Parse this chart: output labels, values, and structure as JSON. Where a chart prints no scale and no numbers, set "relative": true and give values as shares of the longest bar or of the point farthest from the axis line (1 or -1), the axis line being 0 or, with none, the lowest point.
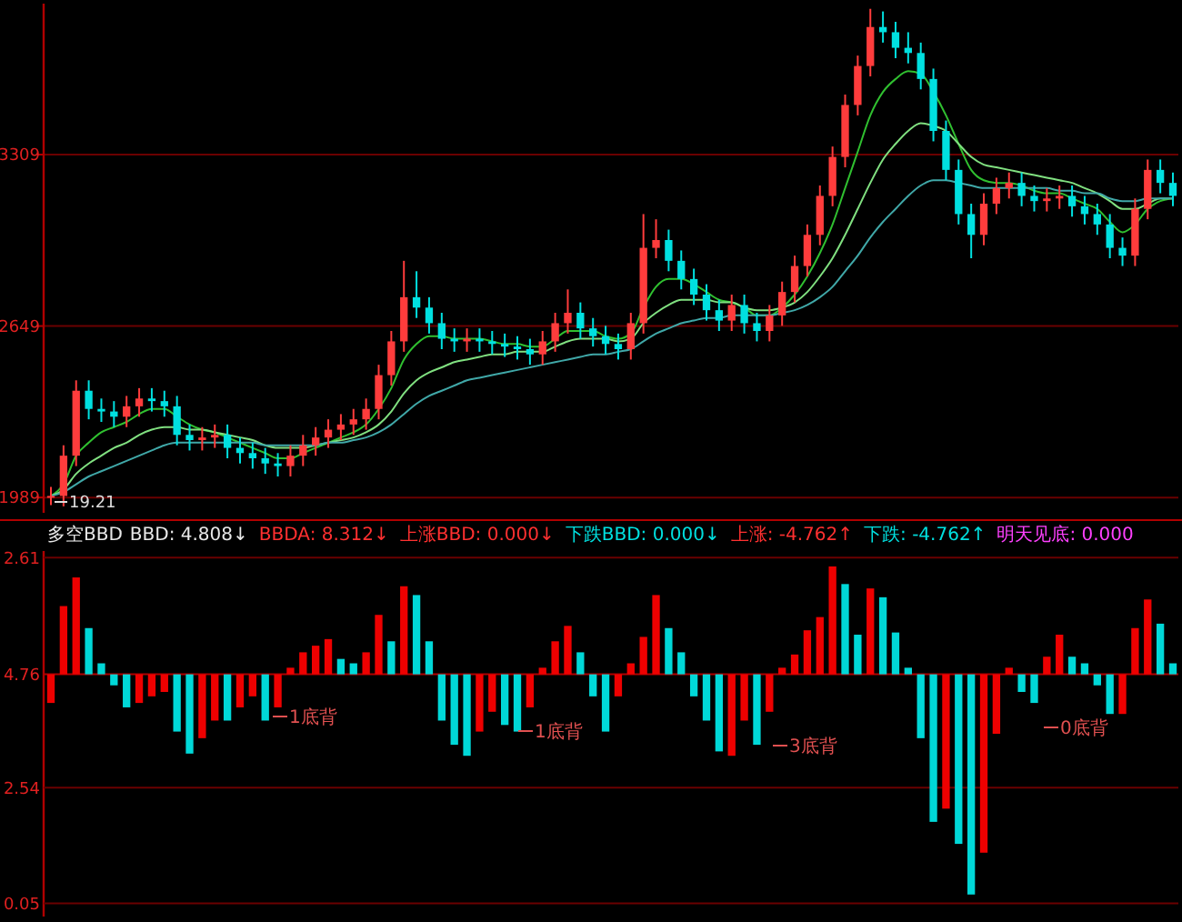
{
  "chart_data": [
    {
      "type": "candlestick",
      "categories": [
        null,
        null,
        null,
        null,
        null,
        null,
        null,
        null,
        null,
        null,
        null,
        null,
        null,
        null,
        null,
        null,
        null,
        null,
        null,
        null,
        null,
        null,
        null,
        null,
        null,
        null,
        null,
        null,
        null,
        null,
        null,
        null,
        null,
        null,
        null,
        null,
        null,
        null,
        null,
        null,
        null,
        null,
        null,
        null,
        null,
        null,
        null,
        null,
        null,
        null,
        null,
        null,
        null,
        null,
        null,
        null,
        null,
        null,
        null,
        null,
        null,
        null,
        null,
        null,
        null,
        null,
        null,
        null,
        null,
        null,
        null,
        null,
        null,
        null,
        null,
        null,
        null,
        null,
        null,
        null,
        null,
        null,
        null,
        null,
        null,
        null,
        null,
        null,
        null,
        null
      ],
      "ohlc": [
        [
          1990,
          2030,
          1960,
          1995
        ],
        [
          1995,
          2190,
          1955,
          2150
        ],
        [
          2150,
          2440,
          2110,
          2400
        ],
        [
          2400,
          2440,
          2290,
          2330
        ],
        [
          2330,
          2370,
          2280,
          2320
        ],
        [
          2320,
          2360,
          2260,
          2300
        ],
        [
          2300,
          2380,
          2260,
          2340
        ],
        [
          2340,
          2410,
          2300,
          2370
        ],
        [
          2370,
          2410,
          2320,
          2360
        ],
        [
          2360,
          2400,
          2300,
          2340
        ],
        [
          2340,
          2380,
          2190,
          2230
        ],
        [
          2230,
          2270,
          2170,
          2210
        ],
        [
          2210,
          2260,
          2170,
          2220
        ],
        [
          2220,
          2270,
          2180,
          2230
        ],
        [
          2230,
          2270,
          2140,
          2180
        ],
        [
          2180,
          2220,
          2120,
          2160
        ],
        [
          2160,
          2200,
          2100,
          2140
        ],
        [
          2140,
          2180,
          2080,
          2120
        ],
        [
          2120,
          2160,
          2070,
          2110
        ],
        [
          2110,
          2190,
          2070,
          2150
        ],
        [
          2150,
          2230,
          2110,
          2190
        ],
        [
          2190,
          2260,
          2150,
          2220
        ],
        [
          2220,
          2290,
          2180,
          2250
        ],
        [
          2250,
          2310,
          2210,
          2270
        ],
        [
          2270,
          2330,
          2230,
          2290
        ],
        [
          2290,
          2370,
          2250,
          2330
        ],
        [
          2330,
          2500,
          2290,
          2460
        ],
        [
          2460,
          2630,
          2420,
          2590
        ],
        [
          2590,
          2900,
          2550,
          2760
        ],
        [
          2760,
          2860,
          2680,
          2720
        ],
        [
          2720,
          2760,
          2620,
          2660
        ],
        [
          2660,
          2700,
          2560,
          2600
        ],
        [
          2600,
          2640,
          2550,
          2590
        ],
        [
          2590,
          2640,
          2550,
          2600
        ],
        [
          2600,
          2640,
          2550,
          2590
        ],
        [
          2590,
          2630,
          2540,
          2580
        ],
        [
          2580,
          2620,
          2530,
          2570
        ],
        [
          2570,
          2610,
          2520,
          2560
        ],
        [
          2560,
          2600,
          2500,
          2540
        ],
        [
          2540,
          2630,
          2500,
          2590
        ],
        [
          2590,
          2700,
          2550,
          2660
        ],
        [
          2660,
          2790,
          2620,
          2700
        ],
        [
          2700,
          2740,
          2600,
          2640
        ],
        [
          2640,
          2680,
          2570,
          2610
        ],
        [
          2610,
          2650,
          2540,
          2580
        ],
        [
          2580,
          2620,
          2520,
          2560
        ],
        [
          2560,
          2700,
          2520,
          2660
        ],
        [
          2660,
          3080,
          2620,
          2950
        ],
        [
          2950,
          3060,
          2910,
          2980
        ],
        [
          2980,
          3020,
          2860,
          2900
        ],
        [
          2900,
          2940,
          2790,
          2830
        ],
        [
          2830,
          2870,
          2730,
          2770
        ],
        [
          2770,
          2810,
          2670,
          2710
        ],
        [
          2710,
          2750,
          2630,
          2670
        ],
        [
          2670,
          2770,
          2630,
          2730
        ],
        [
          2730,
          2770,
          2620,
          2660
        ],
        [
          2660,
          2700,
          2590,
          2630
        ],
        [
          2630,
          2730,
          2590,
          2690
        ],
        [
          2690,
          2820,
          2650,
          2780
        ],
        [
          2780,
          2920,
          2740,
          2880
        ],
        [
          2880,
          3040,
          2840,
          3000
        ],
        [
          3000,
          3190,
          2960,
          3150
        ],
        [
          3150,
          3340,
          3110,
          3300
        ],
        [
          3300,
          3540,
          3260,
          3500
        ],
        [
          3500,
          3690,
          3460,
          3650
        ],
        [
          3650,
          3870,
          3610,
          3800
        ],
        [
          3800,
          3860,
          3740,
          3780
        ],
        [
          3780,
          3820,
          3680,
          3720
        ],
        [
          3720,
          3780,
          3660,
          3700
        ],
        [
          3700,
          3740,
          3560,
          3600
        ],
        [
          3600,
          3640,
          3360,
          3400
        ],
        [
          3400,
          3440,
          3210,
          3250
        ],
        [
          3250,
          3290,
          3040,
          3080
        ],
        [
          3080,
          3120,
          2910,
          3000
        ],
        [
          3000,
          3160,
          2960,
          3120
        ],
        [
          3120,
          3220,
          3080,
          3180
        ],
        [
          3180,
          3240,
          3140,
          3200
        ],
        [
          3200,
          3240,
          3110,
          3150
        ],
        [
          3150,
          3190,
          3090,
          3130
        ],
        [
          3130,
          3180,
          3090,
          3140
        ],
        [
          3140,
          3190,
          3100,
          3150
        ],
        [
          3150,
          3190,
          3070,
          3110
        ],
        [
          3110,
          3150,
          3040,
          3080
        ],
        [
          3080,
          3120,
          3000,
          3040
        ],
        [
          3040,
          3080,
          2910,
          2950
        ],
        [
          2950,
          2990,
          2880,
          2920
        ],
        [
          2920,
          3140,
          2880,
          3100
        ],
        [
          3100,
          3290,
          3060,
          3250
        ],
        [
          3250,
          3290,
          3160,
          3200
        ],
        [
          3200,
          3240,
          3110,
          3150
        ]
      ],
      "colors": [
        "#ff3c3c",
        "#ff3c3c",
        "#ff3c3c",
        "#00e0e0",
        "#00e0e0",
        "#00e0e0",
        "#ff3c3c",
        "#ff3c3c",
        "#00e0e0",
        "#00e0e0",
        "#00e0e0",
        "#00e0e0",
        "#ff3c3c",
        "#ff3c3c",
        "#00e0e0",
        "#00e0e0",
        "#00e0e0",
        "#00e0e0",
        "#00e0e0",
        "#ff3c3c",
        "#ff3c3c",
        "#ff3c3c",
        "#ff3c3c",
        "#ff3c3c",
        "#ff3c3c",
        "#ff3c3c",
        "#ff3c3c",
        "#ff3c3c",
        "#ff3c3c",
        "#00e0e0",
        "#00e0e0",
        "#00e0e0",
        "#00e0e0",
        "#ff3c3c",
        "#00e0e0",
        "#00e0e0",
        "#00e0e0",
        "#00e0e0",
        "#00e0e0",
        "#ff3c3c",
        "#ff3c3c",
        "#ff3c3c",
        "#00e0e0",
        "#00e0e0",
        "#00e0e0",
        "#00e0e0",
        "#ff3c3c",
        "#ff3c3c",
        "#ff3c3c",
        "#00e0e0",
        "#00e0e0",
        "#00e0e0",
        "#00e0e0",
        "#00e0e0",
        "#ff3c3c",
        "#00e0e0",
        "#00e0e0",
        "#ff3c3c",
        "#ff3c3c",
        "#ff3c3c",
        "#ff3c3c",
        "#ff3c3c",
        "#ff3c3c",
        "#ff3c3c",
        "#ff3c3c",
        "#ff3c3c",
        "#00e0e0",
        "#00e0e0",
        "#00e0e0",
        "#00e0e0",
        "#00e0e0",
        "#00e0e0",
        "#00e0e0",
        "#00e0e0",
        "#ff3c3c",
        "#ff3c3c",
        "#ff3c3c",
        "#00e0e0",
        "#00e0e0",
        "#ff3c3c",
        "#ff3c3c",
        "#00e0e0",
        "#00e0e0",
        "#00e0e0",
        "#00e0e0",
        "#00e0e0",
        "#ff3c3c",
        "#ff3c3c",
        "#00e0e0",
        "#00e0e0"
      ],
      "series": [
        {
          "type": "line",
          "color": "#30c030",
          "values": [
            1995,
            2040,
            2150,
            2200,
            2240,
            2260,
            2280,
            2310,
            2330,
            2330,
            2300,
            2270,
            2250,
            2240,
            2220,
            2200,
            2180,
            2160,
            2140,
            2140,
            2160,
            2180,
            2200,
            2220,
            2240,
            2270,
            2330,
            2410,
            2520,
            2580,
            2610,
            2610,
            2600,
            2600,
            2600,
            2590,
            2580,
            2580,
            2570,
            2570,
            2600,
            2630,
            2630,
            2630,
            2610,
            2600,
            2620,
            2720,
            2800,
            2830,
            2830,
            2810,
            2780,
            2750,
            2740,
            2720,
            2690,
            2690,
            2720,
            2770,
            2840,
            2930,
            3040,
            3180,
            3320,
            3460,
            3550,
            3600,
            3630,
            3620,
            3550,
            3460,
            3350,
            3250,
            3210,
            3200,
            3200,
            3190,
            3170,
            3160,
            3160,
            3140,
            3120,
            3100,
            3050,
            3010,
            3040,
            3100,
            3130,
            3140
          ]
        },
        {
          "type": "line",
          "color": "#80e080",
          "values": [
            1995,
            2020,
            2080,
            2120,
            2150,
            2180,
            2200,
            2230,
            2250,
            2260,
            2260,
            2250,
            2250,
            2240,
            2230,
            2220,
            2210,
            2190,
            2180,
            2180,
            2180,
            2190,
            2200,
            2210,
            2220,
            2240,
            2270,
            2320,
            2390,
            2440,
            2470,
            2490,
            2510,
            2520,
            2530,
            2540,
            2540,
            2550,
            2550,
            2550,
            2570,
            2590,
            2600,
            2600,
            2600,
            2590,
            2600,
            2660,
            2700,
            2730,
            2750,
            2750,
            2750,
            2740,
            2740,
            2720,
            2710,
            2710,
            2720,
            2740,
            2780,
            2840,
            2910,
            3000,
            3100,
            3200,
            3290,
            3350,
            3400,
            3430,
            3420,
            3400,
            3350,
            3300,
            3270,
            3260,
            3250,
            3240,
            3230,
            3220,
            3210,
            3200,
            3180,
            3160,
            3130,
            3100,
            3100,
            3120,
            3140,
            3140
          ]
        },
        {
          "type": "line",
          "color": "#40a8a8",
          "values": [
            1995,
            2010,
            2040,
            2070,
            2090,
            2110,
            2130,
            2150,
            2170,
            2190,
            2200,
            2200,
            2200,
            2200,
            2200,
            2200,
            2200,
            2190,
            2190,
            2190,
            2190,
            2190,
            2200,
            2200,
            2210,
            2220,
            2240,
            2270,
            2310,
            2350,
            2380,
            2400,
            2420,
            2440,
            2450,
            2460,
            2470,
            2480,
            2490,
            2500,
            2510,
            2520,
            2530,
            2540,
            2540,
            2550,
            2560,
            2590,
            2620,
            2640,
            2660,
            2670,
            2680,
            2680,
            2690,
            2690,
            2690,
            2690,
            2700,
            2710,
            2730,
            2760,
            2800,
            2860,
            2920,
            2990,
            3050,
            3100,
            3150,
            3190,
            3210,
            3210,
            3200,
            3190,
            3180,
            3180,
            3180,
            3180,
            3180,
            3180,
            3170,
            3170,
            3160,
            3160,
            3140,
            3130,
            3130,
            3140,
            3140,
            3140
          ]
        }
      ],
      "ylim": [
        1930,
        3890
      ],
      "yticks": [
        1989,
        2649,
        3309
      ],
      "grid": "y",
      "tick_labels": "y",
      "annotations": [
        "19.21"
      ]
    },
    {
      "type": "bar",
      "title": "多空BBD",
      "categories": [
        null,
        null,
        null,
        null,
        null,
        null,
        null,
        null,
        null,
        null,
        null,
        null,
        null,
        null,
        null,
        null,
        null,
        null,
        null,
        null,
        null,
        null,
        null,
        null,
        null,
        null,
        null,
        null,
        null,
        null,
        null,
        null,
        null,
        null,
        null,
        null,
        null,
        null,
        null,
        null,
        null,
        null,
        null,
        null,
        null,
        null,
        null,
        null,
        null,
        null,
        null,
        null,
        null,
        null,
        null,
        null,
        null,
        null,
        null,
        null,
        null,
        null,
        null,
        null,
        null,
        null,
        null,
        null,
        null,
        null,
        null,
        null,
        null,
        null,
        null,
        null,
        null,
        null,
        null,
        null,
        null,
        null,
        null,
        null,
        null,
        null,
        null,
        null,
        null,
        null
      ],
      "relative": true,
      "values": [
        -0.13,
        0.31,
        0.44,
        0.21,
        0.05,
        -0.05,
        -0.15,
        -0.13,
        -0.1,
        -0.08,
        -0.26,
        -0.36,
        -0.29,
        -0.21,
        -0.21,
        -0.15,
        -0.1,
        -0.21,
        -0.15,
        0.03,
        0.1,
        0.13,
        0.16,
        0.07,
        0.05,
        0.1,
        0.27,
        0.15,
        0.4,
        0.36,
        0.15,
        -0.21,
        -0.32,
        -0.37,
        -0.26,
        -0.17,
        -0.23,
        -0.26,
        -0.15,
        0.03,
        0.15,
        0.22,
        0.1,
        -0.1,
        -0.26,
        -0.1,
        0.05,
        0.17,
        0.36,
        0.21,
        0.1,
        -0.1,
        -0.21,
        -0.35,
        -0.37,
        -0.21,
        -0.32,
        -0.17,
        0.03,
        0.09,
        0.2,
        0.26,
        0.49,
        0.41,
        0.18,
        0.39,
        0.35,
        0.19,
        0.03,
        -0.29,
        -0.67,
        -0.61,
        -0.77,
        -1,
        -0.81,
        -0.27,
        0.03,
        -0.08,
        -0.13,
        0.08,
        0.18,
        0.08,
        0.05,
        -0.05,
        -0.18,
        -0.18,
        0.21,
        0.34,
        0.23,
        0.05
      ],
      "colors": [
        "#ee0000",
        "#ee0000",
        "#ee0000",
        "#00d8d8",
        "#00d8d8",
        "#00d8d8",
        "#00d8d8",
        "#ee0000",
        "#ee0000",
        "#ee0000",
        "#00d8d8",
        "#00d8d8",
        "#ee0000",
        "#ee0000",
        "#00d8d8",
        "#ee0000",
        "#ee0000",
        "#00d8d8",
        "#ee0000",
        "#ee0000",
        "#ee0000",
        "#ee0000",
        "#ee0000",
        "#00d8d8",
        "#00d8d8",
        "#ee0000",
        "#ee0000",
        "#00d8d8",
        "#ee0000",
        "#00d8d8",
        "#00d8d8",
        "#00d8d8",
        "#00d8d8",
        "#00d8d8",
        "#ee0000",
        "#ee0000",
        "#00d8d8",
        "#00d8d8",
        "#ee0000",
        "#ee0000",
        "#ee0000",
        "#ee0000",
        "#00d8d8",
        "#00d8d8",
        "#00d8d8",
        "#ee0000",
        "#ee0000",
        "#ee0000",
        "#ee0000",
        "#00d8d8",
        "#00d8d8",
        "#00d8d8",
        "#00d8d8",
        "#00d8d8",
        "#ee0000",
        "#ee0000",
        "#00d8d8",
        "#ee0000",
        "#ee0000",
        "#ee0000",
        "#ee0000",
        "#ee0000",
        "#ee0000",
        "#00d8d8",
        "#00d8d8",
        "#ee0000",
        "#00d8d8",
        "#00d8d8",
        "#00d8d8",
        "#00d8d8",
        "#00d8d8",
        "#ee0000",
        "#00d8d8",
        "#00d8d8",
        "#ee0000",
        "#ee0000",
        "#ee0000",
        "#00d8d8",
        "#00d8d8",
        "#ee0000",
        "#ee0000",
        "#00d8d8",
        "#00d8d8",
        "#00d8d8",
        "#00d8d8",
        "#ee0000",
        "#ee0000",
        "#ee0000",
        "#00d8d8",
        "#00d8d8"
      ],
      "ref_lines": [
        {
          "axis": "y",
          "value": 0.53,
          "color": "#6a0000"
        },
        {
          "axis": "y",
          "value": 0,
          "color": "#b00000"
        },
        {
          "axis": "y",
          "value": -0.515,
          "color": "#6a0000"
        },
        {
          "axis": "y",
          "value": -1.04,
          "color": "#6a0000"
        }
      ],
      "annotations": [
        "2.61",
        "4.76",
        "2.54",
        "0.05",
        "BBD: 4.808↓",
        "BBDA: 8.312↓",
        "上涨BBD: 0.000↓",
        "下跌BBD: 0.000↓",
        "上涨: -4.762↑",
        "下跌: -4.762↑",
        "明天见底: 0.000",
        "1底背",
        "1底背",
        "3底背",
        "0底背"
      ]
    }
  ]
}
